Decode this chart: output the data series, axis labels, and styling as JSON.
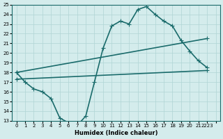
{
  "xlabel": "Humidex (Indice chaleur)",
  "ylabel": "",
  "xlim": [
    -0.5,
    23.5
  ],
  "ylim": [
    13,
    25
  ],
  "yticks": [
    13,
    14,
    15,
    16,
    17,
    18,
    19,
    20,
    21,
    22,
    23,
    24,
    25
  ],
  "xticks": [
    0,
    1,
    2,
    3,
    4,
    5,
    6,
    7,
    8,
    9,
    10,
    11,
    12,
    13,
    14,
    15,
    16,
    17,
    18,
    19,
    20,
    21,
    22,
    23
  ],
  "xtick_labels": [
    "0",
    "1",
    "2",
    "3",
    "4",
    "5",
    "6",
    "7",
    "8",
    "9",
    "10",
    "11",
    "12",
    "13",
    "14",
    "15",
    "16",
    "17",
    "18",
    "19",
    "20",
    "21",
    "2223",
    ""
  ],
  "background_color": "#d4ecec",
  "grid_color": "#b0d4d4",
  "line_color": "#1a6b6b",
  "line1_x": [
    0,
    1,
    2,
    3,
    4,
    5,
    6,
    7,
    8,
    9,
    10,
    11,
    12,
    13,
    14,
    15,
    16,
    17,
    18,
    19,
    20,
    21,
    22
  ],
  "line1_y": [
    18,
    17,
    16.3,
    16.0,
    15.3,
    13.3,
    12.8,
    12.5,
    13.5,
    17.0,
    20.5,
    22.8,
    23.3,
    23.0,
    24.5,
    24.8,
    24.0,
    23.3,
    22.8,
    21.3,
    20.2,
    19.2,
    18.5
  ],
  "line2_x": [
    0,
    22
  ],
  "line2_y": [
    18,
    21.5
  ],
  "line3_x": [
    0,
    22
  ],
  "line3_y": [
    17.3,
    18.2
  ],
  "marker": "+",
  "markersize": 5,
  "linewidth": 1.2
}
